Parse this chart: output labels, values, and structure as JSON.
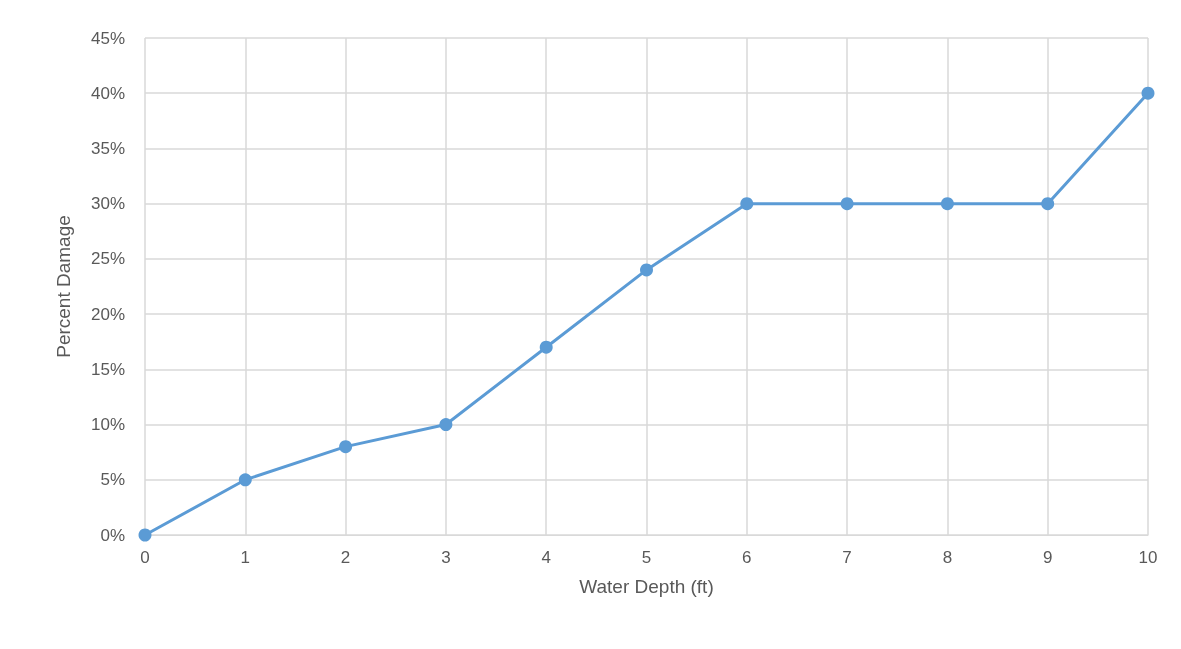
{
  "chart_data": {
    "type": "line",
    "xlabel": "Water Depth (ft)",
    "ylabel": "Percent Damage",
    "x": [
      0,
      1,
      2,
      3,
      4,
      5,
      6,
      7,
      8,
      9,
      10
    ],
    "series": [
      {
        "color": "#5b9bd5",
        "values": [
          0,
          5,
          8,
          10,
          17,
          24,
          30,
          30,
          30,
          30,
          40
        ]
      }
    ],
    "xlim": [
      0,
      10
    ],
    "xticks": [
      0,
      1,
      2,
      3,
      4,
      5,
      6,
      7,
      8,
      9,
      10
    ],
    "ylim": [
      0,
      45
    ],
    "yticks": [
      {
        "value": 0,
        "label": "0%"
      },
      {
        "value": 5,
        "label": "5%"
      },
      {
        "value": 10,
        "label": "10%"
      },
      {
        "value": 15,
        "label": "15%"
      },
      {
        "value": 20,
        "label": "20%"
      },
      {
        "value": 25,
        "label": "25%"
      },
      {
        "value": 30,
        "label": "30%"
      },
      {
        "value": 35,
        "label": "35%"
      },
      {
        "value": 40,
        "label": "40%"
      },
      {
        "value": 45,
        "label": "45%"
      }
    ],
    "grid": true,
    "marker": "circle",
    "line_style": "solid"
  }
}
